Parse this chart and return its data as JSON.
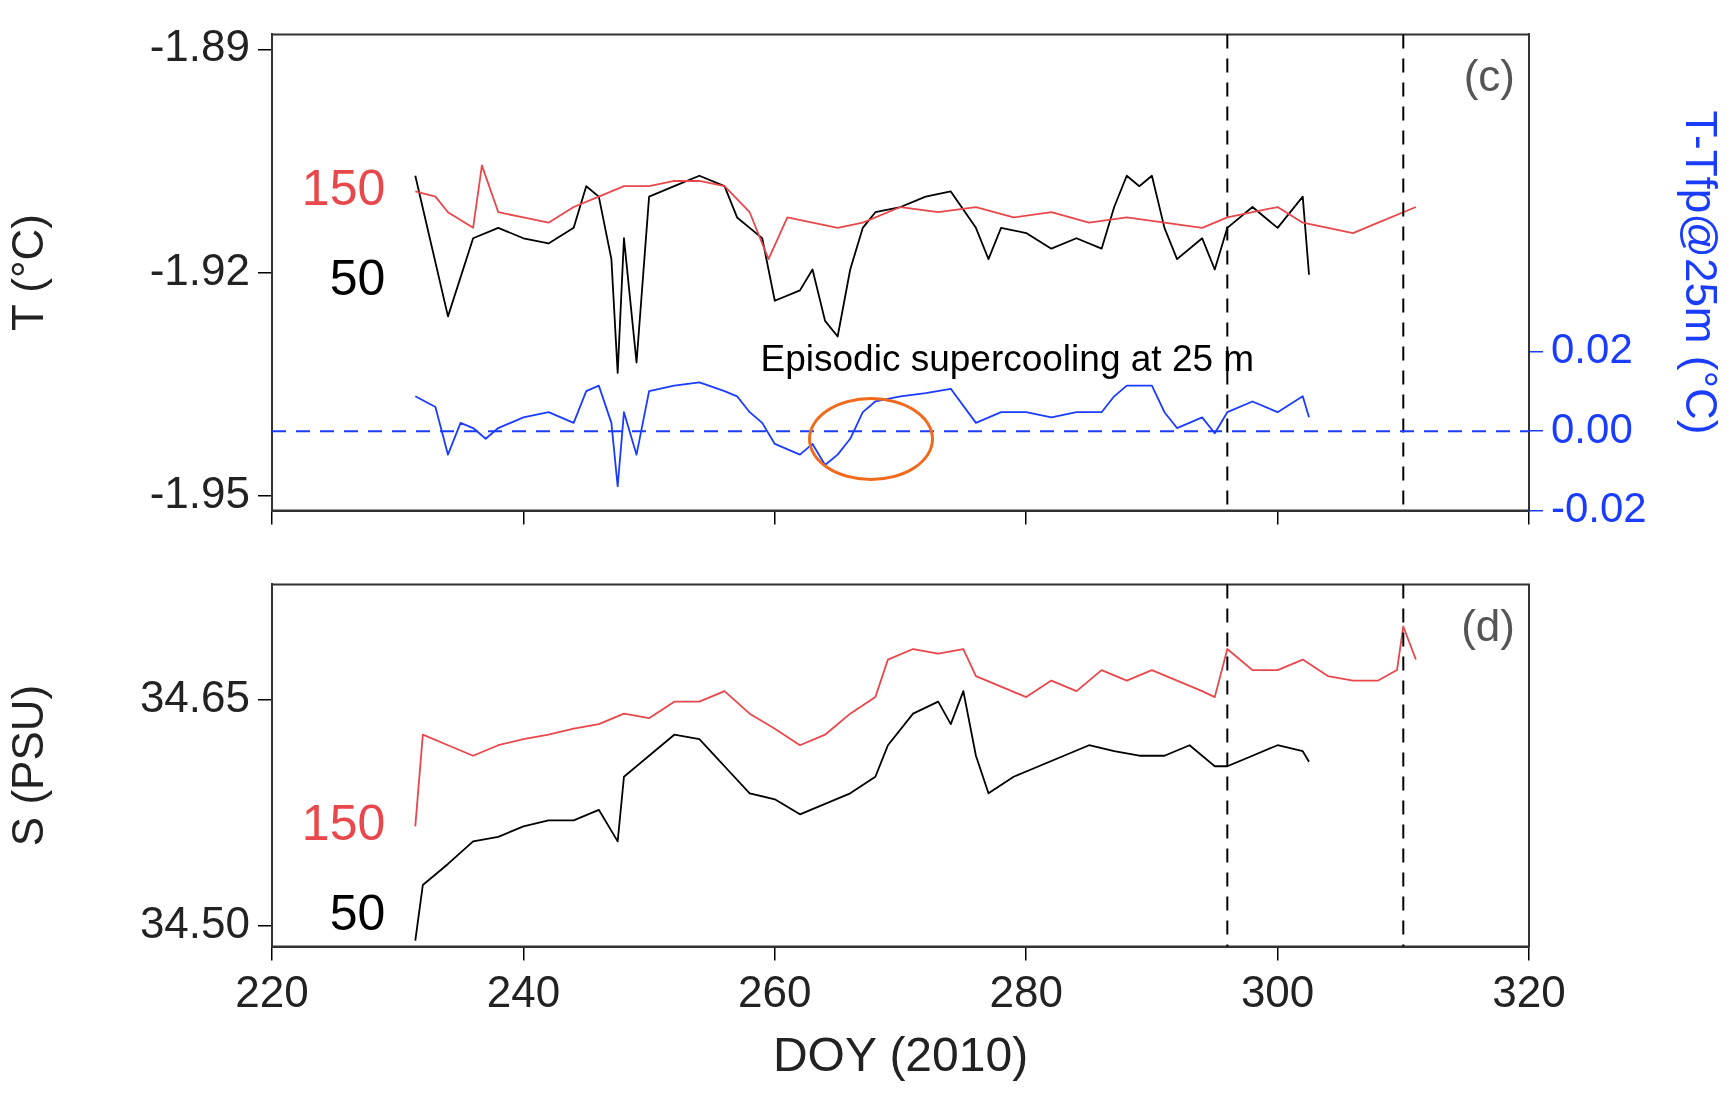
{
  "chart_data": [
    {
      "type": "line",
      "ylabel": "T (°C)",
      "y2label": "T-Tfp@25m (°C)",
      "xlim": [
        220,
        320
      ],
      "xticks": [
        220,
        240,
        260,
        280,
        300,
        320
      ],
      "ylim": [
        -1.952,
        -1.888
      ],
      "yticks": [
        {
          "value": -1.89,
          "label": "-1.89"
        },
        {
          "value": -1.92,
          "label": "-1.92"
        },
        {
          "value": -1.95,
          "label": "-1.95"
        }
      ],
      "y2lim": [
        -0.02,
        0.1
      ],
      "y2ticks": [
        {
          "value": 0.02,
          "label": "0.02"
        },
        {
          "value": 0,
          "label": "0.00"
        },
        {
          "value": -0.02,
          "label": "-0.02"
        }
      ],
      "tick_labels": "y",
      "grid": false,
      "legend": false,
      "marker": "none",
      "line_style": "solid",
      "annotations": [
        "(c)",
        "Episodic supercooling at 25 m"
      ],
      "ref_lines": [
        {
          "axis": "x",
          "value": 296,
          "color": "#000000",
          "line_style": "dashed"
        },
        {
          "axis": "x",
          "value": 310,
          "color": "#000000",
          "line_style": "dashed"
        },
        {
          "axis": "y2",
          "value": 0,
          "color": "#1a3cff",
          "line_style": "dashed"
        }
      ],
      "series": [
        {
          "name": "150",
          "color": "#e8474b",
          "x": [
            231.4,
            233,
            234,
            236,
            236.7,
            238,
            240,
            242,
            244,
            246,
            248,
            250,
            252,
            254,
            256,
            258,
            259.5,
            261,
            263,
            265,
            267,
            270,
            273,
            276,
            279,
            282,
            285,
            288,
            291,
            294,
            296,
            298,
            300,
            302,
            304,
            306,
            308,
            310,
            311
          ],
          "values": [
            -1.9091,
            -1.9098,
            -1.9119,
            -1.914,
            -1.9056,
            -1.9119,
            -1.9126,
            -1.9133,
            -1.9112,
            -1.9098,
            -1.9084,
            -1.9084,
            -1.9077,
            -1.9077,
            -1.9084,
            -1.9119,
            -1.9182,
            -1.9126,
            -1.9133,
            -1.914,
            -1.9133,
            -1.9112,
            -1.9119,
            -1.9112,
            -1.9126,
            -1.9119,
            -1.9133,
            -1.9126,
            -1.9133,
            -1.914,
            -1.9126,
            -1.9119,
            -1.9112,
            -1.9133,
            -1.914,
            -1.9147,
            -1.9133,
            -1.9119,
            -1.9112
          ]
        },
        {
          "name": "50",
          "color": "#000000",
          "x": [
            231.4,
            234,
            236,
            238,
            240,
            242,
            244,
            245,
            246,
            247,
            247.5,
            248,
            249,
            250,
            252,
            254,
            256,
            257,
            258,
            259,
            260,
            262,
            263,
            264,
            265,
            266,
            267,
            268,
            270,
            272,
            274,
            276,
            277,
            278,
            280,
            282,
            284,
            286,
            287,
            288,
            289,
            290,
            291,
            292,
            294,
            295,
            296,
            298,
            300,
            302,
            302.5
          ],
          "values": [
            -1.907,
            -1.9259,
            -1.9154,
            -1.914,
            -1.9154,
            -1.9161,
            -1.914,
            -1.9084,
            -1.9098,
            -1.9182,
            -1.9335,
            -1.9154,
            -1.9321,
            -1.9098,
            -1.9084,
            -1.907,
            -1.9084,
            -1.9126,
            -1.914,
            -1.9154,
            -1.9238,
            -1.9224,
            -1.9196,
            -1.9265,
            -1.9286,
            -1.9196,
            -1.914,
            -1.9119,
            -1.9112,
            -1.9098,
            -1.9091,
            -1.914,
            -1.9182,
            -1.914,
            -1.9147,
            -1.9168,
            -1.9154,
            -1.9168,
            -1.9112,
            -1.907,
            -1.9084,
            -1.907,
            -1.914,
            -1.9182,
            -1.9154,
            -1.9196,
            -1.914,
            -1.9112,
            -1.914,
            -1.9098,
            -1.9203
          ]
        },
        {
          "color": "#1a3cff",
          "axis": "y2",
          "x": [
            231.4,
            233,
            234,
            235,
            236,
            237,
            238,
            240,
            242,
            244,
            245,
            246,
            247,
            247.5,
            248,
            249,
            250,
            252,
            254,
            256,
            257,
            258,
            259,
            260,
            262,
            263,
            264,
            265,
            266,
            267,
            268,
            270,
            272,
            274,
            276,
            278,
            280,
            282,
            284,
            286,
            287,
            288,
            290,
            291,
            292,
            294,
            295,
            296,
            298,
            300,
            302,
            302.5
          ],
          "values": [
            0.0088,
            0.0061,
            -0.0059,
            0.0021,
            0.0008,
            -0.0019,
            0.0008,
            0.0035,
            0.0048,
            0.0021,
            0.0101,
            0.0115,
            0.0021,
            -0.0139,
            0.0048,
            -0.0059,
            0.0101,
            0.0115,
            0.0123,
            0.0101,
            0.0088,
            0.0048,
            0.0021,
            -0.0032,
            -0.0059,
            -0.0032,
            -0.0085,
            -0.0059,
            -0.0019,
            0.0048,
            0.0075,
            0.0088,
            0.0096,
            0.0107,
            0.0021,
            0.0048,
            0.0048,
            0.0035,
            0.0048,
            0.0048,
            0.0088,
            0.0115,
            0.0115,
            0.0048,
            0.0008,
            0.0035,
            -0.0005,
            0.0048,
            0.0075,
            0.0048,
            0.0088,
            0.0035
          ]
        }
      ]
    },
    {
      "type": "line",
      "xlabel": "DOY (2010)",
      "ylabel": "S (PSU)",
      "xlim": [
        220,
        320
      ],
      "xticks": [
        220,
        240,
        260,
        280,
        300,
        320
      ],
      "ylim": [
        34.486,
        34.727
      ],
      "yticks": [
        {
          "value": 34.5,
          "label": "34.50"
        },
        {
          "value": 34.65,
          "label": "34.65"
        }
      ],
      "grid": false,
      "legend": false,
      "marker": "none",
      "line_style": "solid",
      "annotations": [
        "(d)"
      ],
      "ref_lines": [
        {
          "axis": "x",
          "value": 296,
          "color": "#000000",
          "line_style": "dashed"
        },
        {
          "axis": "x",
          "value": 310,
          "color": "#000000",
          "line_style": "dashed"
        }
      ],
      "series": [
        {
          "name": "150",
          "color": "#e8474b",
          "x": [
            231.4,
            232,
            234,
            236,
            238,
            240,
            242,
            244,
            246,
            248,
            250,
            252,
            254,
            256,
            258,
            260,
            262,
            264,
            266,
            268,
            269,
            271,
            273,
            275,
            276,
            278,
            280,
            282,
            284,
            286,
            288,
            290,
            292,
            294,
            295,
            296,
            298,
            300,
            302,
            304,
            306,
            308,
            309.5,
            310,
            311
          ],
          "values": [
            34.566,
            34.627,
            34.62,
            34.613,
            34.62,
            34.624,
            34.627,
            34.631,
            34.634,
            34.641,
            34.638,
            34.649,
            34.649,
            34.656,
            34.641,
            34.631,
            34.62,
            34.627,
            34.641,
            34.652,
            34.677,
            34.684,
            34.681,
            34.684,
            34.666,
            34.659,
            34.652,
            34.663,
            34.656,
            34.67,
            34.663,
            34.67,
            34.663,
            34.656,
            34.652,
            34.684,
            34.67,
            34.67,
            34.677,
            34.666,
            34.663,
            34.663,
            34.67,
            34.699,
            34.677
          ]
        },
        {
          "name": "50",
          "color": "#000000",
          "x": [
            231.4,
            232,
            234,
            236,
            238,
            240,
            242,
            244,
            246,
            247.5,
            248,
            250,
            252,
            254,
            256,
            258,
            260,
            262,
            264,
            266,
            268,
            269,
            271,
            273,
            274,
            275,
            276,
            277,
            279,
            281,
            283,
            285,
            287,
            289,
            291,
            293,
            295,
            296,
            298,
            300,
            302,
            302.5
          ],
          "values": [
            34.49,
            34.527,
            34.541,
            34.556,
            34.559,
            34.566,
            34.57,
            34.57,
            34.577,
            34.556,
            34.599,
            34.613,
            34.627,
            34.624,
            34.606,
            34.588,
            34.584,
            34.574,
            34.581,
            34.588,
            34.599,
            34.62,
            34.641,
            34.649,
            34.634,
            34.656,
            34.613,
            34.588,
            34.599,
            34.606,
            34.613,
            34.62,
            34.616,
            34.613,
            34.613,
            34.62,
            34.606,
            34.606,
            34.613,
            34.62,
            34.616,
            34.609
          ]
        }
      ]
    }
  ]
}
